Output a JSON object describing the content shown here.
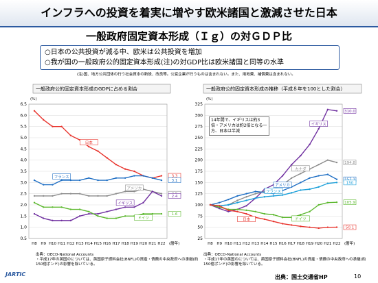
{
  "header": {
    "title": "インフラへの投資を着実に増やす欧米諸国と激減させた日本",
    "subtitle": "一般政府固定資本形成（Ｉｇ）の対ＧＤＰ比"
  },
  "bullets": [
    "○日本の公共投資が減る中、欧米は公共投資を増加",
    "○我が国の一般政府公的固定資本形成(注)の対GDP比は欧米諸国と同等の水準"
  ],
  "note": "(注)国、地方公共団体の行う社会資本の新設、改良等。公営企業が行うものは含まれない。また、用地費、補償費は含まれない。",
  "chart_data": [
    {
      "type": "line",
      "title": "一般政府公的固定資本形成のGDPに占める割合",
      "y_unit": "(%)",
      "x_unit": "(暦年)",
      "categories": [
        "H8",
        "H9",
        "H10",
        "H11",
        "H12",
        "H13",
        "H14",
        "H15",
        "H16",
        "H17",
        "H18",
        "H19",
        "H20",
        "H21",
        "H22"
      ],
      "ylim": [
        0.5,
        6.5
      ],
      "yticks": [
        0.5,
        {
          "value": 1,
          "label": "1.0"
        },
        1.5,
        {
          "value": 2,
          "label": "2.0"
        },
        2.5,
        {
          "value": 3,
          "label": "3.0"
        },
        3.5,
        {
          "value": 4,
          "label": "4.0"
        },
        4.5,
        {
          "value": 5,
          "label": "5.0"
        },
        5.5,
        {
          "value": 6,
          "label": "6.0"
        },
        6.5
      ],
      "grid": true,
      "end_labels": true,
      "series": [
        {
          "name": "日本",
          "color": "#e8322b",
          "values": [
            6.2,
            5.8,
            5.5,
            5.5,
            5.1,
            4.9,
            4.6,
            4.4,
            4.1,
            3.8,
            3.6,
            3.5,
            3.3,
            3.2,
            3.3
          ]
        },
        {
          "name": "フランス",
          "color": "#1f6fc4",
          "values": [
            3.1,
            2.9,
            2.9,
            3.1,
            3.1,
            3.1,
            3.2,
            3.1,
            3.1,
            3.2,
            3.2,
            3.3,
            3.3,
            3.2,
            3.1
          ]
        },
        {
          "name": "アメリカ",
          "color": "#8c8c8c",
          "values": [
            2.4,
            2.4,
            2.4,
            2.5,
            2.5,
            2.5,
            2.4,
            2.4,
            2.4,
            2.5,
            2.6,
            2.6,
            2.7,
            2.6,
            2.5
          ]
        },
        {
          "name": "イギリス",
          "color": "#7030a0",
          "values": [
            1.6,
            1.4,
            1.3,
            1.3,
            1.3,
            1.5,
            1.6,
            1.6,
            1.7,
            1.8,
            1.9,
            1.9,
            2.1,
            2.6,
            2.4
          ]
        },
        {
          "name": "ドイツ",
          "color": "#5cb82e",
          "values": [
            2.1,
            1.9,
            1.9,
            1.9,
            1.8,
            1.8,
            1.7,
            1.5,
            1.4,
            1.4,
            1.5,
            1.5,
            1.6,
            1.6,
            1.6
          ]
        }
      ],
      "source": "出典：OECD-National Accounts",
      "source_note": "・平成17年の英国のについては、英国原子燃料会社(BNFL)の資産・債務の中央政府への承継(約150億ポンド)の影響を除いている。"
    },
    {
      "type": "line",
      "title": "一般政府公的固定資本形成の推移（平成８年を100とした割合）",
      "y_unit": "(%)",
      "x_unit": "(暦年)",
      "categories": [
        "H8",
        "H9",
        "H10",
        "H11",
        "H12",
        "H13",
        "H14",
        "H15",
        "H16",
        "H17",
        "H18",
        "H19",
        "H20",
        "H21",
        "H22"
      ],
      "ylim": [
        25,
        325
      ],
      "yticks": [
        25,
        50,
        75,
        100,
        125,
        150,
        175,
        200,
        225,
        250,
        275,
        300,
        325
      ],
      "grid": true,
      "end_labels": true,
      "annotation": "14年間で、イギリスは約3倍・アメリカは約2倍となる一方、日本は半減",
      "series": [
        {
          "name": "イギリス",
          "color": "#7030a0",
          "values": [
            100,
            92,
            85,
            90,
            98,
            115,
            135,
            145,
            165,
            190,
            210,
            235,
            270,
            313,
            310
          ],
          "value_labels": [
            null,
            null,
            null,
            null,
            null,
            null,
            null,
            null,
            null,
            null,
            null,
            null,
            null,
            null,
            "310.0"
          ]
        },
        {
          "name": "カナダ",
          "color": "#8c8c8c",
          "values": [
            100,
            98,
            100,
            110,
            118,
            125,
            130,
            135,
            145,
            160,
            170,
            180,
            190,
            200,
            194.8
          ],
          "value_labels": [
            null,
            null,
            null,
            null,
            null,
            null,
            null,
            null,
            null,
            null,
            null,
            null,
            null,
            null,
            "194.8"
          ]
        },
        {
          "name": "アメリカ",
          "color": "#1f6fc4",
          "values": [
            100,
            105,
            112,
            120,
            125,
            130,
            128,
            125,
            132,
            140,
            150,
            160,
            165,
            168,
            157.1
          ],
          "value_labels": [
            null,
            null,
            null,
            null,
            null,
            null,
            null,
            null,
            null,
            null,
            null,
            null,
            null,
            null,
            "157.1"
          ]
        },
        {
          "name": "フランス",
          "color": "#1a9fd9",
          "values": [
            100,
            98,
            100,
            105,
            110,
            115,
            118,
            120,
            122,
            127,
            133,
            135,
            140,
            148,
            150
          ]
        },
        {
          "name": "ドイツ",
          "color": "#5cb82e",
          "values": [
            100,
            95,
            90,
            90,
            88,
            85,
            80,
            78,
            72,
            72,
            78,
            85,
            100,
            105,
            105.9
          ],
          "value_labels": [
            null,
            null,
            null,
            null,
            null,
            null,
            null,
            null,
            null,
            null,
            null,
            null,
            null,
            null,
            "105.9"
          ]
        },
        {
          "name": "日本",
          "color": "#e8322b",
          "values": [
            100,
            98,
            88,
            85,
            80,
            72,
            68,
            63,
            58,
            55,
            52,
            50,
            48,
            50,
            50.1
          ],
          "value_labels": [
            null,
            null,
            null,
            null,
            null,
            null,
            null,
            null,
            null,
            null,
            null,
            null,
            null,
            null,
            "50.1"
          ]
        }
      ],
      "source": "出典：OECD-National Accounts",
      "source_note": "・平成17年の英国のについては、英国原子燃料会社(BNFL)の資産・債務の中央政府への承継(約150億ポンド)の影響を除いている。"
    }
  ],
  "footer": {
    "source": "出典：国土交通省HP",
    "page": "10",
    "logo": "JARTIC"
  }
}
